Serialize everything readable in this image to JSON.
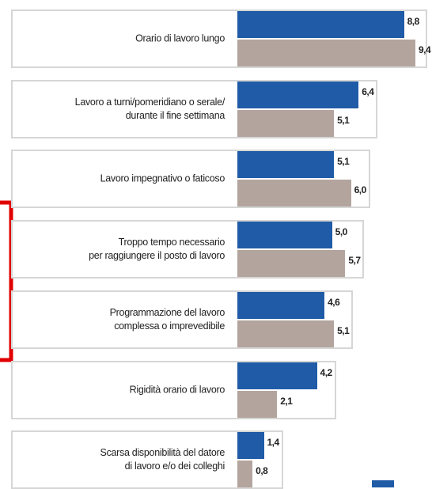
{
  "chart_data": {
    "type": "bar",
    "orientation": "horizontal",
    "categories": [
      "Orario di lavoro lungo",
      "Lavoro a turni/pomeridiano o serale/\ndurante il fine settimana",
      "Lavoro impegnativo o faticoso",
      "Troppo tempo necessario\nper raggiungere il posto di lavoro",
      "Programmazione del lavoro\ncomplessa o imprevedibile",
      "Rigidità orario di lavoro",
      "Scarsa disponibilità del datore\ndi lavoro e/o dei colleghi"
    ],
    "series": [
      {
        "color": "#1f5ba6",
        "values": [
          8.8,
          6.4,
          5.1,
          5.0,
          4.6,
          4.2,
          1.4
        ],
        "value_labels": [
          "8,8",
          "6,4",
          "5,1",
          "5,0",
          "4,6",
          "4,2",
          "1,4"
        ]
      },
      {
        "color": "#b3a59e",
        "values": [
          9.4,
          5.1,
          6.0,
          5.7,
          5.1,
          2.1,
          0.8
        ],
        "value_labels": [
          "9,4",
          "5,1",
          "6,0",
          "5,7",
          "5,1",
          "2,1",
          "0,8"
        ]
      }
    ]
  }
}
